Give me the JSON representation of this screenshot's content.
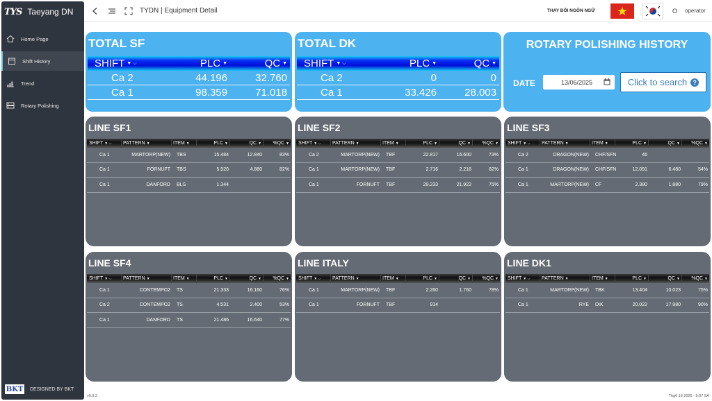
{
  "sidebar": {
    "logo": "TYS",
    "brand": "Taeyang DN",
    "items": [
      {
        "label": "Home Page",
        "icon": "home-icon"
      },
      {
        "label": "Shift History",
        "icon": "calendar-icon"
      },
      {
        "label": "Trend",
        "icon": "chart-icon"
      },
      {
        "label": "Rotary Polishing",
        "icon": "machine-icon"
      }
    ],
    "footer_logo": "BKT",
    "footer_text": "DESIGNED BY BKT"
  },
  "topbar": {
    "title": "TYDN | Equipment Detail",
    "language_label": "THAY ĐỔI NGÔN NGỮ",
    "user_initial": "O",
    "username": "operator"
  },
  "total_sf": {
    "title": "TOTAL SF",
    "headers": [
      "SHIFT",
      "PLC",
      "QC"
    ],
    "rows": [
      {
        "shift": "Ca 2",
        "plc": "44.196",
        "qc": "32.760"
      },
      {
        "shift": "Ca 1",
        "plc": "98.359",
        "qc": "71.018"
      }
    ]
  },
  "total_dk": {
    "title": "TOTAL DK",
    "headers": [
      "SHIFT",
      "PLC",
      "QC"
    ],
    "rows": [
      {
        "shift": "Ca 2",
        "plc": "0",
        "qc": "0"
      },
      {
        "shift": "Ca 1",
        "plc": "33.426",
        "qc": "28.003"
      }
    ]
  },
  "history": {
    "title": "ROTARY POLISHING HISTORY",
    "date_label": "DATE",
    "date_value": "13/06/2025",
    "search_label": "Click to search"
  },
  "line_headers": [
    "SHIFT",
    "PATTERN",
    "ITEM",
    "PLC",
    "QC",
    "%QC"
  ],
  "lines": [
    {
      "title": "LINE SF1",
      "rows": [
        {
          "shift": "Ca 1",
          "pattern": "MARTORP(NEW)",
          "item": "TBS",
          "plc": "15.484",
          "qc": "12.840",
          "pct": "83%"
        },
        {
          "shift": "Ca 1",
          "pattern": "FORNUFT",
          "item": "TBS",
          "plc": "5.920",
          "qc": "4.880",
          "pct": "82%"
        },
        {
          "shift": "Ca 1",
          "pattern": "DANFORD",
          "item": "BLS",
          "plc": "1.344",
          "qc": "",
          "pct": ""
        }
      ]
    },
    {
      "title": "LINE SF2",
      "rows": [
        {
          "shift": "Ca 2",
          "pattern": "MARTORP(NEW)",
          "item": "TBF",
          "plc": "22.817",
          "qc": "16.600",
          "pct": "73%"
        },
        {
          "shift": "Ca 1",
          "pattern": "MARTORP(NEW)",
          "item": "TBF",
          "plc": "2.716",
          "qc": "2.216",
          "pct": "82%"
        },
        {
          "shift": "Ca 1",
          "pattern": "FORNUFT",
          "item": "TBF",
          "plc": "29.233",
          "qc": "21.922",
          "pct": "75%"
        }
      ]
    },
    {
      "title": "LINE SF3",
      "rows": [
        {
          "shift": "Ca 2",
          "pattern": "DRAGON(NEW)",
          "item": "CHF/SFN",
          "plc": "46",
          "qc": "",
          "pct": ""
        },
        {
          "shift": "Ca 1",
          "pattern": "DRAGON(NEW)",
          "item": "CHF/SFN",
          "plc": "12.091",
          "qc": "6.480",
          "pct": "54%"
        },
        {
          "shift": "Ca 1",
          "pattern": "MARTORP(NEW)",
          "item": "CF",
          "plc": "2.380",
          "qc": "1.880",
          "pct": "79%"
        }
      ]
    },
    {
      "title": "LINE SF4",
      "rows": [
        {
          "shift": "Ca 1",
          "pattern": "CONTEMPO2",
          "item": "TS",
          "plc": "21.333",
          "qc": "16.160",
          "pct": "76%"
        },
        {
          "shift": "Ca 2",
          "pattern": "CONTEMPO2",
          "item": "TS",
          "plc": "4.531",
          "qc": "2.400",
          "pct": "53%"
        },
        {
          "shift": "Ca 1",
          "pattern": "DANFORD",
          "item": "TS",
          "plc": "21.486",
          "qc": "16.640",
          "pct": "77%"
        }
      ]
    },
    {
      "title": "LINE ITALY",
      "rows": [
        {
          "shift": "Ca 1",
          "pattern": "MARTORP(NEW)",
          "item": "TBF",
          "plc": "2.260",
          "qc": "1.760",
          "pct": "78%"
        },
        {
          "shift": "Ca 1",
          "pattern": "FORNUFT",
          "item": "TBF",
          "plc": "914",
          "qc": "",
          "pct": ""
        }
      ]
    },
    {
      "title": "LINE DK1",
      "rows": [
        {
          "shift": "Ca 1",
          "pattern": "MARTORP(NEW)",
          "item": "TBK",
          "plc": "13.404",
          "qc": "10.023",
          "pct": "75%"
        },
        {
          "shift": "Ca 1",
          "pattern": "RYE",
          "item": "DIK",
          "plc": "20.022",
          "qc": "17.980",
          "pct": "90%"
        }
      ]
    }
  ],
  "footer": {
    "version": "v0.9.2",
    "datetime": "Thg6 16 2025 - 9:07 SA"
  },
  "colors": {
    "sidebar": "#2f353e",
    "summary_card": "#4db2f0",
    "line_card": "#646b75",
    "accent": "#6cc3e6"
  }
}
